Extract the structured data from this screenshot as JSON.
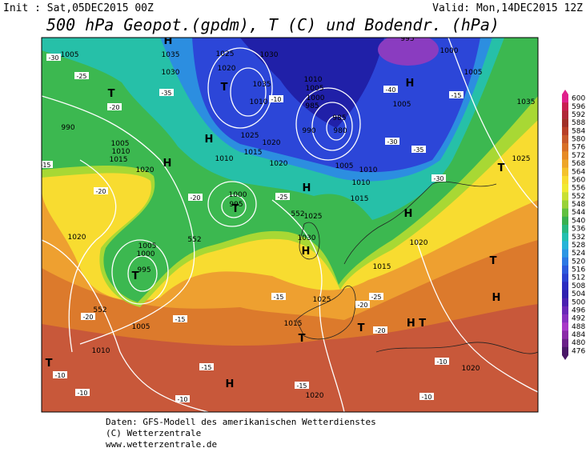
{
  "header": {
    "init": "Init : Sat,05DEC2015 00Z",
    "valid": "Valid: Mon,14DEC2015 12Z",
    "title": "500 hPa Geopot.(gpdm), T (C) und Bodendr. (hPa)"
  },
  "legend": {
    "values": [
      "600",
      "596",
      "592",
      "588",
      "584",
      "580",
      "576",
      "572",
      "568",
      "564",
      "560",
      "556",
      "552",
      "548",
      "544",
      "540",
      "536",
      "532",
      "528",
      "524",
      "520",
      "516",
      "512",
      "508",
      "504",
      "500",
      "496",
      "492",
      "488",
      "484",
      "480",
      "476"
    ]
  },
  "map": {
    "labels": [
      "1005",
      "1030",
      "1025",
      "1035",
      "1000",
      "995",
      "H",
      "1020",
      "1030",
      "1005",
      "H",
      "T",
      "1035",
      "1010",
      "1005",
      "1000",
      "985",
      "1010",
      "1005",
      "1035",
      "990",
      "980",
      "985",
      "T",
      "990",
      "H",
      "1025",
      "1020",
      "1015",
      "1005",
      "1010",
      "1015",
      "1020",
      "H",
      "1010",
      "1020",
      "1005",
      "1010",
      "1010",
      "1025",
      "T",
      "H",
      "1000",
      "995",
      "T",
      "1015",
      "H",
      "1025",
      "1020",
      "1030",
      "H",
      "1005",
      "1000",
      "995",
      "T",
      "1015",
      "1020",
      "T",
      "H",
      "1025",
      "1015",
      "T",
      "T",
      "H T",
      "1005",
      "1010",
      "T",
      "H",
      "1020",
      "1020",
      "552",
      "552",
      "552"
    ],
    "temps": [
      "-30",
      "-25",
      "-20",
      "-35",
      "-40",
      "-35",
      "-30",
      "-25",
      "-30",
      "-20",
      "-15",
      "-20",
      "-15",
      "-10",
      "-20",
      "-25",
      "-15",
      "-10",
      "-20",
      "-10",
      "-10",
      "-15",
      "-10",
      "-15",
      "-20",
      "-15",
      "-10"
    ]
  },
  "footer": {
    "lines": [
      "Daten: GFS-Modell des amerikanischen Wetterdienstes",
      "(C) Wetterzentrale",
      "www.wetterzentrale.de"
    ]
  }
}
